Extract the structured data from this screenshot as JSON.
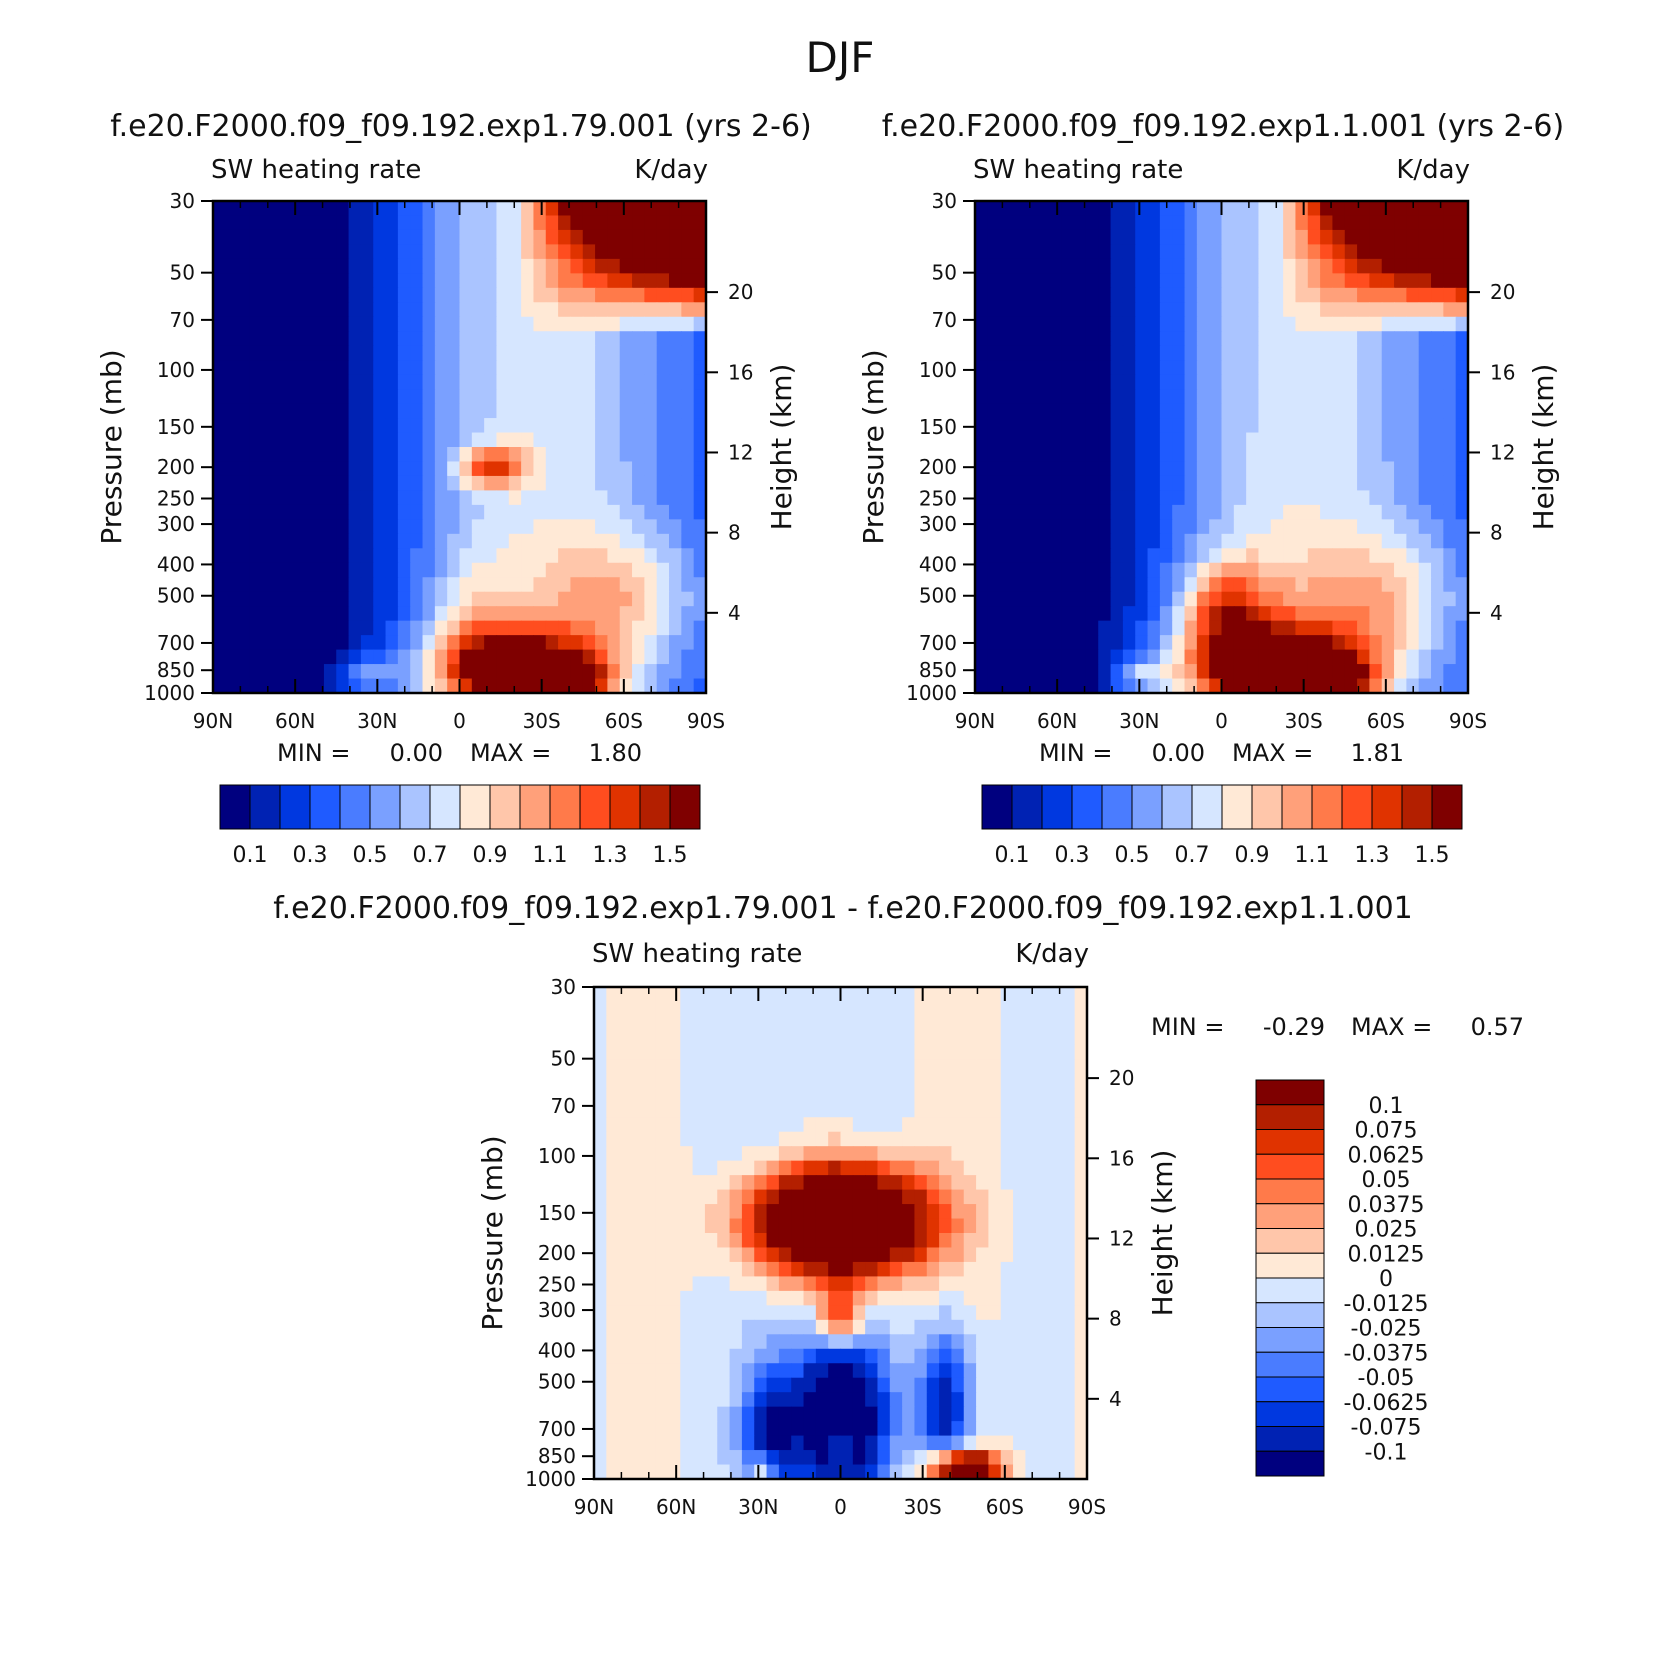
{
  "page_title": "DJF",
  "chart_data": [
    {
      "type": "heatmap",
      "id": "top-left",
      "case_title": "f.e20.F2000.f09_f09.192.exp1.79.001 (yrs 2-6)",
      "variable": "SW heating rate",
      "units": "K/day",
      "ylabel": "Pressure (mb)",
      "y2label": "Height (km)",
      "xlabel": "",
      "x_ticks": [
        "90N",
        "60N",
        "30N",
        "0",
        "30S",
        "60S",
        "90S"
      ],
      "x_tick_values": [
        90,
        60,
        30,
        0,
        -30,
        -60,
        -90
      ],
      "xlim": [
        90,
        -90
      ],
      "y_ticks": [
        30,
        50,
        70,
        100,
        150,
        200,
        250,
        300,
        400,
        500,
        700,
        850,
        1000
      ],
      "ylim": [
        1000,
        30
      ],
      "height_ticks": [
        20,
        16,
        12,
        8,
        4
      ],
      "min_label": "MIN =",
      "min_value": "0.00",
      "max_label": "MAX =",
      "max_value": "1.80",
      "legend_position": "bottom",
      "levels": [
        0.1,
        0.2,
        0.3,
        0.4,
        0.5,
        0.6,
        0.7,
        0.8,
        0.9,
        1.0,
        1.1,
        1.2,
        1.3,
        1.4,
        1.5
      ],
      "level_labels": [
        "0.1",
        "0.3",
        "0.5",
        "0.7",
        "0.9",
        "1.1",
        "1.3",
        "1.5"
      ],
      "colors": [
        "#00007f",
        "#0022b3",
        "#0038e0",
        "#1f5bff",
        "#4a7cff",
        "#7aa0ff",
        "#aac4ff",
        "#d6e6ff",
        "#ffe9d6",
        "#ffc6aa",
        "#ffa07a",
        "#ff7a4a",
        "#ff4d1f",
        "#e03300",
        "#b31f00",
        "#7f0000"
      ],
      "min_pos": [
        0.0,
        1000
      ],
      "max_pos": [
        -40,
        900
      ],
      "features": [
        {
          "lat": -20,
          "p": 850,
          "w": 30,
          "h": 0.3,
          "amp": 1.1
        },
        {
          "lat": -40,
          "p": 900,
          "w": 14,
          "h": 0.14,
          "amp": 0.7
        },
        {
          "lat": -12,
          "p": 200,
          "w": 12,
          "h": 0.14,
          "amp": 0.7
        },
        {
          "lat": -60,
          "p": 500,
          "w": 28,
          "h": 0.45,
          "amp": 0.4
        },
        {
          "lat": 35,
          "p": 880,
          "w": 10,
          "h": 0.12,
          "amp": 0.35
        },
        {
          "lat": -5,
          "p": 600,
          "w": 14,
          "h": 0.5,
          "amp": 0.25
        }
      ]
    },
    {
      "type": "heatmap",
      "id": "top-right",
      "case_title": "f.e20.F2000.f09_f09.192.exp1.1.001 (yrs 2-6)",
      "variable": "SW heating rate",
      "units": "K/day",
      "ylabel": "Pressure (mb)",
      "y2label": "Height (km)",
      "xlabel": "",
      "x_ticks": [
        "90N",
        "60N",
        "30N",
        "0",
        "30S",
        "60S",
        "90S"
      ],
      "x_tick_values": [
        90,
        60,
        30,
        0,
        -30,
        -60,
        -90
      ],
      "xlim": [
        90,
        -90
      ],
      "y_ticks": [
        30,
        50,
        70,
        100,
        150,
        200,
        250,
        300,
        400,
        500,
        700,
        850,
        1000
      ],
      "ylim": [
        1000,
        30
      ],
      "height_ticks": [
        20,
        16,
        12,
        8,
        4
      ],
      "min_label": "MIN =",
      "min_value": "0.00",
      "max_label": "MAX =",
      "max_value": "1.81",
      "legend_position": "bottom",
      "levels": [
        0.1,
        0.2,
        0.3,
        0.4,
        0.5,
        0.6,
        0.7,
        0.8,
        0.9,
        1.0,
        1.1,
        1.2,
        1.3,
        1.4,
        1.5
      ],
      "level_labels": [
        "0.1",
        "0.3",
        "0.5",
        "0.7",
        "0.9",
        "1.1",
        "1.3",
        "1.5"
      ],
      "colors": [
        "#00007f",
        "#0022b3",
        "#0038e0",
        "#1f5bff",
        "#4a7cff",
        "#7aa0ff",
        "#aac4ff",
        "#d6e6ff",
        "#ffe9d6",
        "#ffc6aa",
        "#ffa07a",
        "#ff7a4a",
        "#ff4d1f",
        "#e03300",
        "#b31f00",
        "#7f0000"
      ],
      "min_pos": [
        0.0,
        1000
      ],
      "max_pos": [
        -40,
        900
      ],
      "features": [
        {
          "lat": -20,
          "p": 850,
          "w": 34,
          "h": 0.32,
          "amp": 1.15
        },
        {
          "lat": -40,
          "p": 900,
          "w": 14,
          "h": 0.14,
          "amp": 0.7
        },
        {
          "lat": 0,
          "p": 540,
          "w": 14,
          "h": 0.3,
          "amp": 0.45
        },
        {
          "lat": -60,
          "p": 500,
          "w": 28,
          "h": 0.45,
          "amp": 0.4
        },
        {
          "lat": 30,
          "p": 880,
          "w": 10,
          "h": 0.12,
          "amp": 0.35
        },
        {
          "lat": -5,
          "p": 600,
          "w": 22,
          "h": 0.55,
          "amp": 0.3
        }
      ]
    },
    {
      "type": "heatmap",
      "id": "difference",
      "case_title": "f.e20.F2000.f09_f09.192.exp1.79.001 - f.e20.F2000.f09_f09.192.exp1.1.001",
      "variable": "SW heating rate",
      "units": "K/day",
      "ylabel": "Pressure (mb)",
      "y2label": "Height (km)",
      "xlabel": "",
      "x_ticks": [
        "90N",
        "60N",
        "30N",
        "0",
        "30S",
        "60S",
        "90S"
      ],
      "x_tick_values": [
        90,
        60,
        30,
        0,
        -30,
        -60,
        -90
      ],
      "xlim": [
        90,
        -90
      ],
      "y_ticks": [
        30,
        50,
        70,
        100,
        150,
        200,
        250,
        300,
        400,
        500,
        700,
        850,
        1000
      ],
      "ylim": [
        1000,
        30
      ],
      "height_ticks": [
        20,
        16,
        12,
        8,
        4
      ],
      "min_label": "MIN =",
      "min_value": "-0.29",
      "max_label": "MAX =",
      "max_value": "0.57",
      "legend_position": "right",
      "levels": [
        -0.1,
        -0.075,
        -0.0625,
        -0.05,
        -0.0375,
        -0.025,
        -0.0125,
        0,
        0.0125,
        0.025,
        0.0375,
        0.05,
        0.0625,
        0.075,
        0.1
      ],
      "level_labels": [
        "0.1",
        "0.075",
        "0.0625",
        "0.05",
        "0.0375",
        "0.025",
        "0.0125",
        "0",
        "-0.0125",
        "-0.025",
        "-0.0375",
        "-0.05",
        "-0.0625",
        "-0.075",
        "-0.1"
      ],
      "colors": [
        "#00007f",
        "#0022b3",
        "#0038e0",
        "#1f5bff",
        "#4a7cff",
        "#7aa0ff",
        "#aac4ff",
        "#d6e6ff",
        "#ffe9d6",
        "#ffc6aa",
        "#ffa07a",
        "#ff7a4a",
        "#ff4d1f",
        "#e03300",
        "#b31f00",
        "#7f0000"
      ],
      "features": [
        {
          "lat": 0,
          "p": 160,
          "w": 30,
          "h": 0.36,
          "amp": 0.25
        },
        {
          "lat": 0,
          "p": 320,
          "w": 8,
          "h": 0.22,
          "amp": 0.09
        },
        {
          "lat": 0,
          "p": 640,
          "w": 16,
          "h": 0.55,
          "amp": -0.16
        },
        {
          "lat": 25,
          "p": 720,
          "w": 10,
          "h": 0.45,
          "amp": -0.09
        },
        {
          "lat": -38,
          "p": 600,
          "w": 10,
          "h": 0.55,
          "amp": -0.09
        },
        {
          "lat": -45,
          "p": 940,
          "w": 12,
          "h": 0.14,
          "amp": 0.18
        },
        {
          "lat": 28,
          "p": 930,
          "w": 4,
          "h": 0.12,
          "amp": 0.07
        },
        {
          "lat": 0,
          "p": 760,
          "w": 3,
          "h": 0.12,
          "amp": 0.12
        }
      ]
    }
  ]
}
